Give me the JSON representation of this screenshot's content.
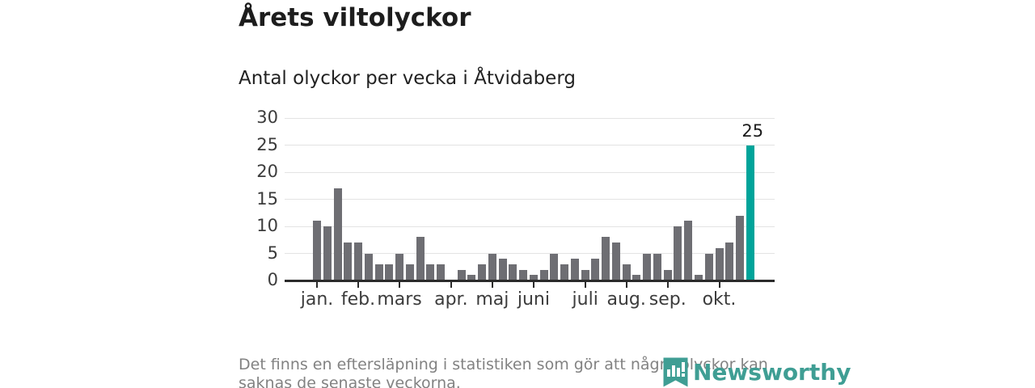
{
  "header": {
    "title": "Årets viltolyckor",
    "subtitle": "Antal olyckor per vecka i Åtvidaberg"
  },
  "chart_data": {
    "type": "bar",
    "title": "Årets viltolyckor",
    "subtitle": "Antal olyckor per vecka i Åtvidaberg",
    "x_unit": "vecka (week 1–43)",
    "values": [
      11,
      10,
      17,
      7,
      7,
      5,
      3,
      3,
      5,
      3,
      8,
      3,
      3,
      0,
      2,
      1,
      3,
      5,
      4,
      3,
      2,
      1,
      2,
      5,
      3,
      4,
      2,
      4,
      8,
      7,
      3,
      1,
      5,
      5,
      2,
      10,
      11,
      1,
      5,
      6,
      7,
      12,
      25
    ],
    "highlight_index": 42,
    "highlight_value_label": "25",
    "ylim": [
      0,
      30
    ],
    "yticks": [
      0,
      5,
      10,
      15,
      20,
      25,
      30
    ],
    "grid": "horizontal",
    "legend": "none",
    "month_ticks": [
      {
        "label": "jan.",
        "week_index": 0
      },
      {
        "label": "feb.",
        "week_index": 4
      },
      {
        "label": "mars",
        "week_index": 8
      },
      {
        "label": "apr.",
        "week_index": 13
      },
      {
        "label": "maj",
        "week_index": 17
      },
      {
        "label": "juni",
        "week_index": 21
      },
      {
        "label": "juli",
        "week_index": 26
      },
      {
        "label": "aug.",
        "week_index": 30
      },
      {
        "label": "sep.",
        "week_index": 34
      },
      {
        "label": "okt.",
        "week_index": 39
      }
    ],
    "colors": {
      "bar": "#6e6e73",
      "highlight": "#00a49a",
      "axis": "#2b2b2b",
      "gridline": "#e3e3e3",
      "tick_label": "#3c3c3c"
    }
  },
  "footer": {
    "note": "Det finns en eftersläpning i statistiken som gör att några olyckor kan saknas de senaste veckorna.",
    "brand": "Newsworthy",
    "brand_color": "#3f9e94",
    "brand_icon": "newsworthy-pennant-barchart-icon"
  }
}
